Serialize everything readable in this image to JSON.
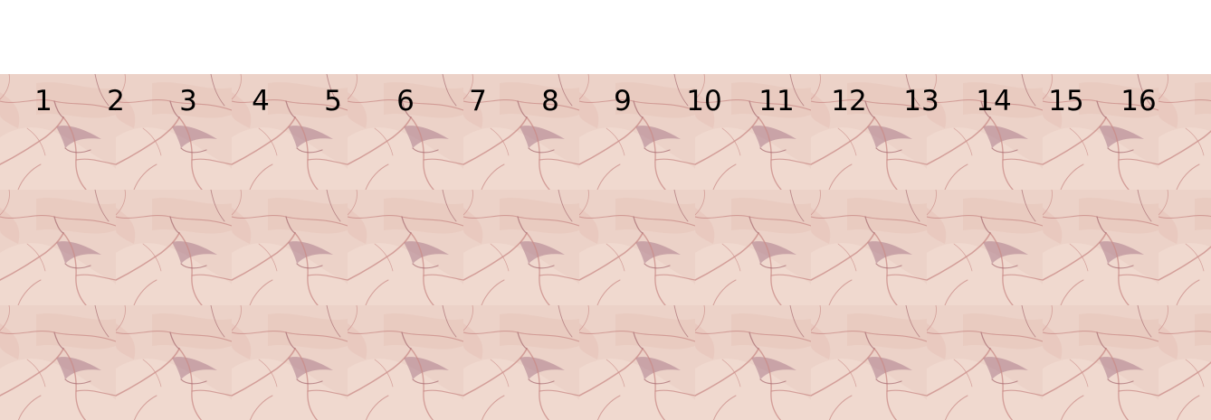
{
  "labels": [
    "1",
    "2",
    "3",
    "4",
    "5",
    "6",
    "7",
    "8",
    "9",
    "10",
    "11",
    "12",
    "13",
    "14",
    "15",
    "16"
  ],
  "texture": {
    "name": "pink marble pattern",
    "colors": {
      "base": "#ecd2c8",
      "light": "#f3dcd2",
      "mid": "#e3bcb1",
      "vein": "#c98a86",
      "dark_vein": "#a96f74",
      "purple_shadow": "#9e6a7f"
    }
  }
}
